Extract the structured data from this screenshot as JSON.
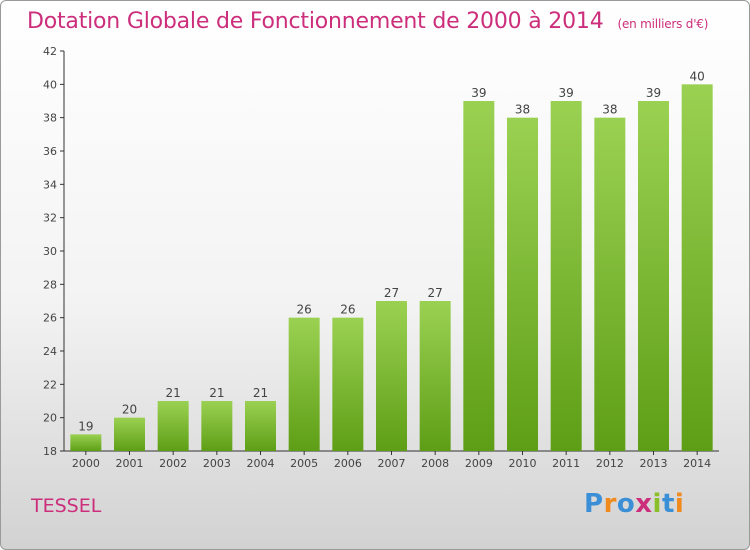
{
  "header": {
    "title": "Dotation Globale de Fonctionnement de 2000 à 2014",
    "unit": "(en milliers d'€)"
  },
  "footer": {
    "commune": "TESSEL",
    "logo_text": "Proxiti"
  },
  "colors": {
    "title": "#cc2e7c",
    "bar_top": "#9bd152",
    "bar_bottom": "#5e9e16",
    "logo": [
      "#3a8fd6",
      "#f08a1c",
      "#3a8fd6",
      "#cc2e7c",
      "#8bbf2a",
      "#3a8fd6",
      "#f08a1c"
    ]
  },
  "chart_data": {
    "type": "bar",
    "categories": [
      "2000",
      "2001",
      "2002",
      "2003",
      "2004",
      "2005",
      "2006",
      "2007",
      "2008",
      "2009",
      "2010",
      "2011",
      "2012",
      "2013",
      "2014"
    ],
    "values": [
      19,
      20,
      21,
      21,
      21,
      26,
      26,
      27,
      27,
      39,
      38,
      39,
      38,
      39,
      40
    ],
    "ylim": [
      18,
      42
    ],
    "yticks": [
      18,
      20,
      22,
      24,
      26,
      28,
      30,
      32,
      34,
      36,
      38,
      40,
      42
    ],
    "data_labels": true,
    "grid": false
  }
}
